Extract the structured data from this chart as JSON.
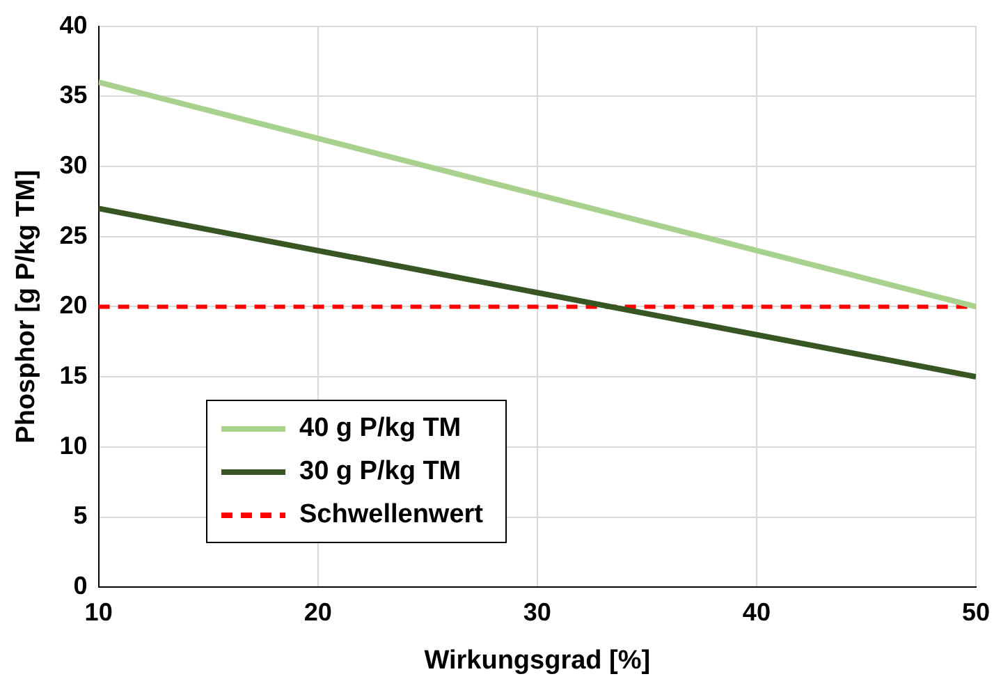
{
  "chart_data": {
    "type": "line",
    "xlabel": "Wirkungsgrad [%]",
    "ylabel": "Phosphor [g P/kg TM]",
    "x": [
      10,
      50
    ],
    "series": [
      {
        "name": "40 g P/kg TM",
        "color": "#a9d18e",
        "values": [
          36,
          20
        ]
      },
      {
        "name": "30 g P/kg TM",
        "color": "#375623",
        "values": [
          27,
          15
        ]
      }
    ],
    "ref_lines": [
      {
        "axis": "y",
        "value": 20,
        "label": "Schwellenwert",
        "color": "#ff0000",
        "line_style": "dashed"
      }
    ],
    "xlim": [
      10,
      50
    ],
    "xticks": [
      10,
      20,
      30,
      40,
      50
    ],
    "ylim": [
      0,
      40
    ],
    "yticks": [
      0,
      5,
      10,
      15,
      20,
      25,
      30,
      35,
      40
    ],
    "grid": true,
    "legend": "bottom left",
    "marker": "none",
    "line_style": "solid"
  }
}
